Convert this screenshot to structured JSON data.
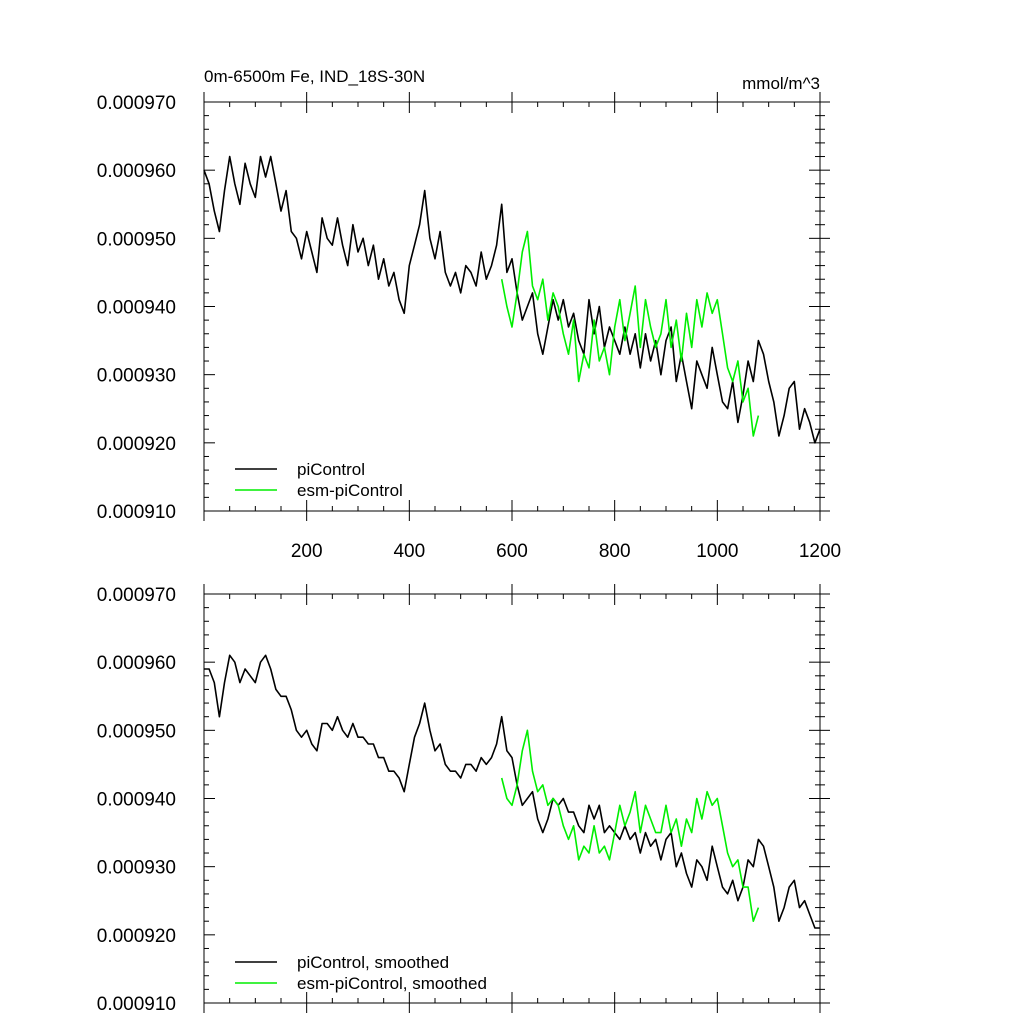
{
  "figure": {
    "title_left": "0m-6500m Fe, IND_18S-30N",
    "title_right": "mmol/m^3"
  },
  "chart_data": [
    {
      "type": "line",
      "title": "0m-6500m Fe, IND_18S-30N",
      "units": "mmol/m^3",
      "xlim": [
        0,
        1200
      ],
      "ylim": [
        0.00091,
        0.00097
      ],
      "x_ticks": [
        200,
        400,
        600,
        800,
        1000,
        1200
      ],
      "x_tick_labels": [
        "200",
        "400",
        "600",
        "800",
        "1000",
        "1200"
      ],
      "y_ticks": [
        0.00091,
        0.00092,
        0.00093,
        0.00094,
        0.00095,
        0.00096,
        0.00097
      ],
      "y_tick_labels": [
        "0.000910",
        "0.000920",
        "0.000930",
        "0.000940",
        "0.000950",
        "0.000960",
        "0.000970"
      ],
      "legend_position": "bottom-left",
      "series": [
        {
          "name": "piControl",
          "color": "#000000",
          "x": [
            0,
            10,
            20,
            30,
            40,
            50,
            60,
            70,
            80,
            90,
            100,
            110,
            120,
            130,
            140,
            150,
            160,
            170,
            180,
            190,
            200,
            210,
            220,
            230,
            240,
            250,
            260,
            270,
            280,
            290,
            300,
            310,
            320,
            330,
            340,
            350,
            360,
            370,
            380,
            390,
            400,
            410,
            420,
            430,
            440,
            450,
            460,
            470,
            480,
            490,
            500,
            510,
            520,
            530,
            540,
            550,
            560,
            570,
            580,
            590,
            600,
            610,
            620,
            630,
            640,
            650,
            660,
            670,
            680,
            690,
            700,
            710,
            720,
            730,
            740,
            750,
            760,
            770,
            780,
            790,
            800,
            810,
            820,
            830,
            840,
            850,
            860,
            870,
            880,
            890,
            900,
            910,
            920,
            930,
            940,
            950,
            960,
            970,
            980,
            990,
            1000,
            1010,
            1020,
            1030,
            1040,
            1050,
            1060,
            1070,
            1080,
            1090,
            1100,
            1110,
            1120,
            1130,
            1140,
            1150,
            1160,
            1170,
            1180,
            1190,
            1200
          ],
          "values": [
            0.00096,
            0.000958,
            0.000954,
            0.000951,
            0.000957,
            0.000962,
            0.000958,
            0.000955,
            0.000961,
            0.000958,
            0.000956,
            0.000962,
            0.000959,
            0.000962,
            0.000958,
            0.000954,
            0.000957,
            0.000951,
            0.00095,
            0.000947,
            0.000951,
            0.000948,
            0.000945,
            0.000953,
            0.00095,
            0.000949,
            0.000953,
            0.000949,
            0.000946,
            0.000952,
            0.000948,
            0.00095,
            0.000946,
            0.000949,
            0.000944,
            0.000947,
            0.000943,
            0.000945,
            0.000941,
            0.000939,
            0.000946,
            0.000949,
            0.000952,
            0.000957,
            0.00095,
            0.000947,
            0.000951,
            0.000945,
            0.000943,
            0.000945,
            0.000942,
            0.000946,
            0.000945,
            0.000943,
            0.000948,
            0.000944,
            0.000946,
            0.000949,
            0.000955,
            0.000945,
            0.000947,
            0.000942,
            0.000938,
            0.00094,
            0.000942,
            0.000936,
            0.000933,
            0.000937,
            0.000941,
            0.000938,
            0.000941,
            0.000937,
            0.000939,
            0.000935,
            0.000933,
            0.000941,
            0.000936,
            0.00094,
            0.000934,
            0.000937,
            0.000935,
            0.000933,
            0.000937,
            0.000933,
            0.000936,
            0.000931,
            0.000936,
            0.000932,
            0.000935,
            0.00093,
            0.000935,
            0.000937,
            0.000929,
            0.000933,
            0.000929,
            0.000925,
            0.000932,
            0.00093,
            0.000928,
            0.000934,
            0.00093,
            0.000926,
            0.000925,
            0.000929,
            0.000923,
            0.000927,
            0.000932,
            0.000929,
            0.000935,
            0.000933,
            0.000929,
            0.000926,
            0.000921,
            0.000924,
            0.000928,
            0.000929,
            0.000922,
            0.000925,
            0.000923,
            0.00092,
            0.000922
          ]
        },
        {
          "name": "esm-piControl",
          "color": "#00ee00",
          "x": [
            580,
            590,
            600,
            610,
            620,
            630,
            640,
            650,
            660,
            670,
            680,
            690,
            700,
            710,
            720,
            730,
            740,
            750,
            760,
            770,
            780,
            790,
            800,
            810,
            820,
            830,
            840,
            850,
            860,
            870,
            880,
            890,
            900,
            910,
            920,
            930,
            940,
            950,
            960,
            970,
            980,
            990,
            1000,
            1010,
            1020,
            1030,
            1040,
            1050,
            1060,
            1070,
            1080
          ],
          "values": [
            0.000944,
            0.00094,
            0.000937,
            0.000942,
            0.000948,
            0.000951,
            0.000943,
            0.000941,
            0.000944,
            0.000938,
            0.000942,
            0.00094,
            0.000936,
            0.000933,
            0.000938,
            0.000929,
            0.000933,
            0.000931,
            0.000938,
            0.000932,
            0.000934,
            0.00093,
            0.000937,
            0.000941,
            0.000935,
            0.000939,
            0.000943,
            0.000934,
            0.000941,
            0.000937,
            0.000934,
            0.000936,
            0.000941,
            0.000934,
            0.000938,
            0.000932,
            0.000939,
            0.000934,
            0.000941,
            0.000937,
            0.000942,
            0.000939,
            0.000941,
            0.000936,
            0.000931,
            0.000929,
            0.000932,
            0.000926,
            0.000928,
            0.000921,
            0.000924
          ]
        }
      ]
    },
    {
      "type": "line",
      "xlim": [
        0,
        1200
      ],
      "ylim": [
        0.00091,
        0.00097
      ],
      "y_ticks": [
        0.00091,
        0.00092,
        0.00093,
        0.00094,
        0.00095,
        0.00096,
        0.00097
      ],
      "y_tick_labels": [
        "0.000910",
        "0.000920",
        "0.000930",
        "0.000940",
        "0.000950",
        "0.000960",
        "0.000970"
      ],
      "legend_position": "bottom-left",
      "series": [
        {
          "name": "piControl, smoothed",
          "color": "#000000",
          "x": [
            0,
            10,
            20,
            30,
            40,
            50,
            60,
            70,
            80,
            90,
            100,
            110,
            120,
            130,
            140,
            150,
            160,
            170,
            180,
            190,
            200,
            210,
            220,
            230,
            240,
            250,
            260,
            270,
            280,
            290,
            300,
            310,
            320,
            330,
            340,
            350,
            360,
            370,
            380,
            390,
            400,
            410,
            420,
            430,
            440,
            450,
            460,
            470,
            480,
            490,
            500,
            510,
            520,
            530,
            540,
            550,
            560,
            570,
            580,
            590,
            600,
            610,
            620,
            630,
            640,
            650,
            660,
            670,
            680,
            690,
            700,
            710,
            720,
            730,
            740,
            750,
            760,
            770,
            780,
            790,
            800,
            810,
            820,
            830,
            840,
            850,
            860,
            870,
            880,
            890,
            900,
            910,
            920,
            930,
            940,
            950,
            960,
            970,
            980,
            990,
            1000,
            1010,
            1020,
            1030,
            1040,
            1050,
            1060,
            1070,
            1080,
            1090,
            1100,
            1110,
            1120,
            1130,
            1140,
            1150,
            1160,
            1170,
            1180,
            1190,
            1200
          ],
          "values": [
            0.000959,
            0.000959,
            0.000957,
            0.000952,
            0.000957,
            0.000961,
            0.00096,
            0.000957,
            0.000959,
            0.000958,
            0.000957,
            0.00096,
            0.000961,
            0.000959,
            0.000956,
            0.000955,
            0.000955,
            0.000953,
            0.00095,
            0.000949,
            0.00095,
            0.000948,
            0.000947,
            0.000951,
            0.000951,
            0.00095,
            0.000952,
            0.00095,
            0.000949,
            0.000951,
            0.000949,
            0.000949,
            0.000948,
            0.000948,
            0.000946,
            0.000946,
            0.000944,
            0.000944,
            0.000943,
            0.000941,
            0.000945,
            0.000949,
            0.000951,
            0.000954,
            0.00095,
            0.000947,
            0.000948,
            0.000945,
            0.000944,
            0.000944,
            0.000943,
            0.000945,
            0.000945,
            0.000944,
            0.000946,
            0.000945,
            0.000946,
            0.000948,
            0.000952,
            0.000947,
            0.000946,
            0.000942,
            0.000939,
            0.00094,
            0.000941,
            0.000937,
            0.000935,
            0.000937,
            0.00094,
            0.000939,
            0.00094,
            0.000938,
            0.000938,
            0.000936,
            0.000935,
            0.000939,
            0.000937,
            0.000939,
            0.000935,
            0.000936,
            0.000935,
            0.000934,
            0.000936,
            0.000934,
            0.000935,
            0.000932,
            0.000935,
            0.000933,
            0.000934,
            0.000931,
            0.000934,
            0.000935,
            0.00093,
            0.000932,
            0.000929,
            0.000927,
            0.000931,
            0.00093,
            0.000928,
            0.000933,
            0.00093,
            0.000927,
            0.000926,
            0.000928,
            0.000925,
            0.000927,
            0.000931,
            0.00093,
            0.000934,
            0.000933,
            0.00093,
            0.000927,
            0.000922,
            0.000924,
            0.000927,
            0.000928,
            0.000924,
            0.000925,
            0.000923,
            0.000921,
            0.000921
          ]
        },
        {
          "name": "esm-piControl, smoothed",
          "color": "#00ee00",
          "x": [
            580,
            590,
            600,
            610,
            620,
            630,
            640,
            650,
            660,
            670,
            680,
            690,
            700,
            710,
            720,
            730,
            740,
            750,
            760,
            770,
            780,
            790,
            800,
            810,
            820,
            830,
            840,
            850,
            860,
            870,
            880,
            890,
            900,
            910,
            920,
            930,
            940,
            950,
            960,
            970,
            980,
            990,
            1000,
            1010,
            1020,
            1030,
            1040,
            1050,
            1060,
            1070,
            1080
          ],
          "values": [
            0.000943,
            0.00094,
            0.000939,
            0.000942,
            0.000947,
            0.00095,
            0.000944,
            0.000941,
            0.000942,
            0.000939,
            0.00094,
            0.000939,
            0.000936,
            0.000934,
            0.000936,
            0.000931,
            0.000933,
            0.000932,
            0.000936,
            0.000932,
            0.000933,
            0.000931,
            0.000935,
            0.000939,
            0.000936,
            0.000938,
            0.000941,
            0.000935,
            0.000939,
            0.000937,
            0.000935,
            0.000935,
            0.000939,
            0.000935,
            0.000937,
            0.000933,
            0.000937,
            0.000935,
            0.00094,
            0.000937,
            0.000941,
            0.000939,
            0.00094,
            0.000936,
            0.000932,
            0.00093,
            0.000931,
            0.000927,
            0.000927,
            0.000922,
            0.000924
          ]
        }
      ]
    }
  ]
}
